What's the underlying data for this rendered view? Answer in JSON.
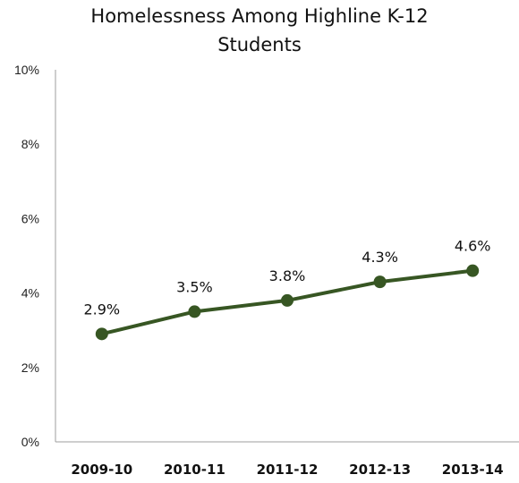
{
  "chart_data": {
    "type": "line",
    "title_lines": [
      "Homelessness Among Highline K-12",
      "Students"
    ],
    "categories": [
      "2009-10",
      "2010-11",
      "2011-12",
      "2012-13",
      "2013-14"
    ],
    "series": [
      {
        "values": [
          2.9,
          3.5,
          3.8,
          4.3,
          4.6
        ],
        "labels": [
          "2.9%",
          "3.5%",
          "3.8%",
          "4.3%",
          "4.6%"
        ]
      }
    ],
    "ylim": [
      0,
      10
    ],
    "yticks": [
      0,
      2,
      4,
      6,
      8,
      10
    ],
    "ytick_labels": [
      "0%",
      "2%",
      "4%",
      "6%",
      "8%",
      "10%"
    ],
    "grid": false,
    "legend": "none",
    "line_color": "#375623",
    "axis_color": "#9e9e9e"
  }
}
